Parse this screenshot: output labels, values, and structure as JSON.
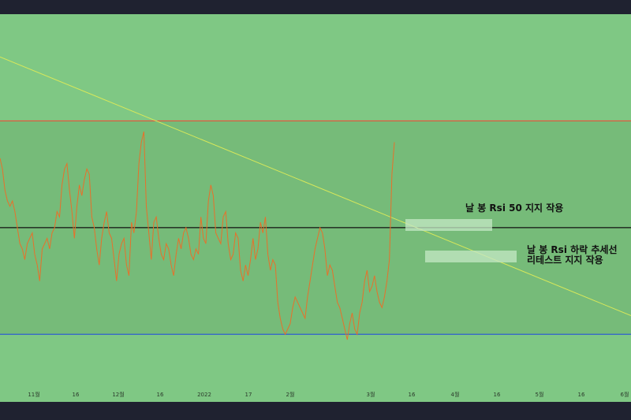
{
  "chart_data": {
    "type": "line",
    "title": "",
    "xlabel": "",
    "ylabel": "",
    "ylim": [
      20,
      90
    ],
    "legend": "none",
    "grid": false,
    "colors": {
      "background": "#7fc884",
      "band": "#76bb79",
      "rsi_line": "#e8702a",
      "upper_level": "#e8503a",
      "middle_level": "#111111",
      "lower_level": "#2f5fd0",
      "trendline": "#d8e85a",
      "highlight_box": "#c6e8c6"
    },
    "levels": {
      "upper": 70,
      "middle": 50,
      "lower": 30
    },
    "x_ticks": [
      "11월",
      "16",
      "12월",
      "16",
      "2022",
      "17",
      "2월",
      "3월",
      "16",
      "4월",
      "16",
      "5월",
      "16",
      "6월"
    ],
    "series": [
      {
        "values": [
          63,
          61,
          57,
          55,
          54,
          55,
          53,
          50,
          47,
          46,
          44,
          47,
          48,
          49,
          45,
          43,
          40,
          46,
          47,
          48,
          46,
          49,
          50,
          53,
          52,
          58,
          61,
          62,
          57,
          53,
          48,
          54,
          58,
          56,
          59,
          61,
          60,
          52,
          50,
          46,
          43,
          48,
          51,
          53,
          49,
          48,
          44,
          40,
          45,
          47,
          48,
          43,
          41,
          51,
          49,
          53,
          62,
          66,
          68,
          54,
          49,
          44,
          51,
          52,
          48,
          45,
          44,
          47,
          46,
          43,
          41,
          45,
          48,
          46,
          49,
          50,
          48,
          45,
          44,
          46,
          45,
          52,
          48,
          47,
          55,
          58,
          56,
          49,
          48,
          47,
          52,
          53,
          47,
          44,
          45,
          49,
          48,
          42,
          40,
          43,
          41,
          44,
          48,
          44,
          46,
          51,
          49,
          52,
          45,
          42,
          44,
          43,
          36,
          33,
          31,
          30,
          31,
          32,
          35,
          37,
          36,
          35,
          34,
          33,
          37,
          40,
          43,
          46,
          48,
          50,
          49,
          46,
          41,
          43,
          42,
          39,
          36,
          35,
          33,
          31,
          29,
          32,
          34,
          31,
          30,
          34,
          36,
          40,
          42,
          38,
          39,
          41,
          38,
          36,
          35,
          37,
          40,
          44,
          60,
          66
        ]
      }
    ],
    "trendline": {
      "start": [
        0,
        82
      ],
      "end": [
        1,
        33.5
      ]
    },
    "annotations": [
      {
        "text": "날 봉 Rsi 50 지지 작용"
      },
      {
        "text_line1": "날 봉 Rsi 하락 추세선",
        "text_line2": "리테스트 지지 작용"
      }
    ]
  }
}
